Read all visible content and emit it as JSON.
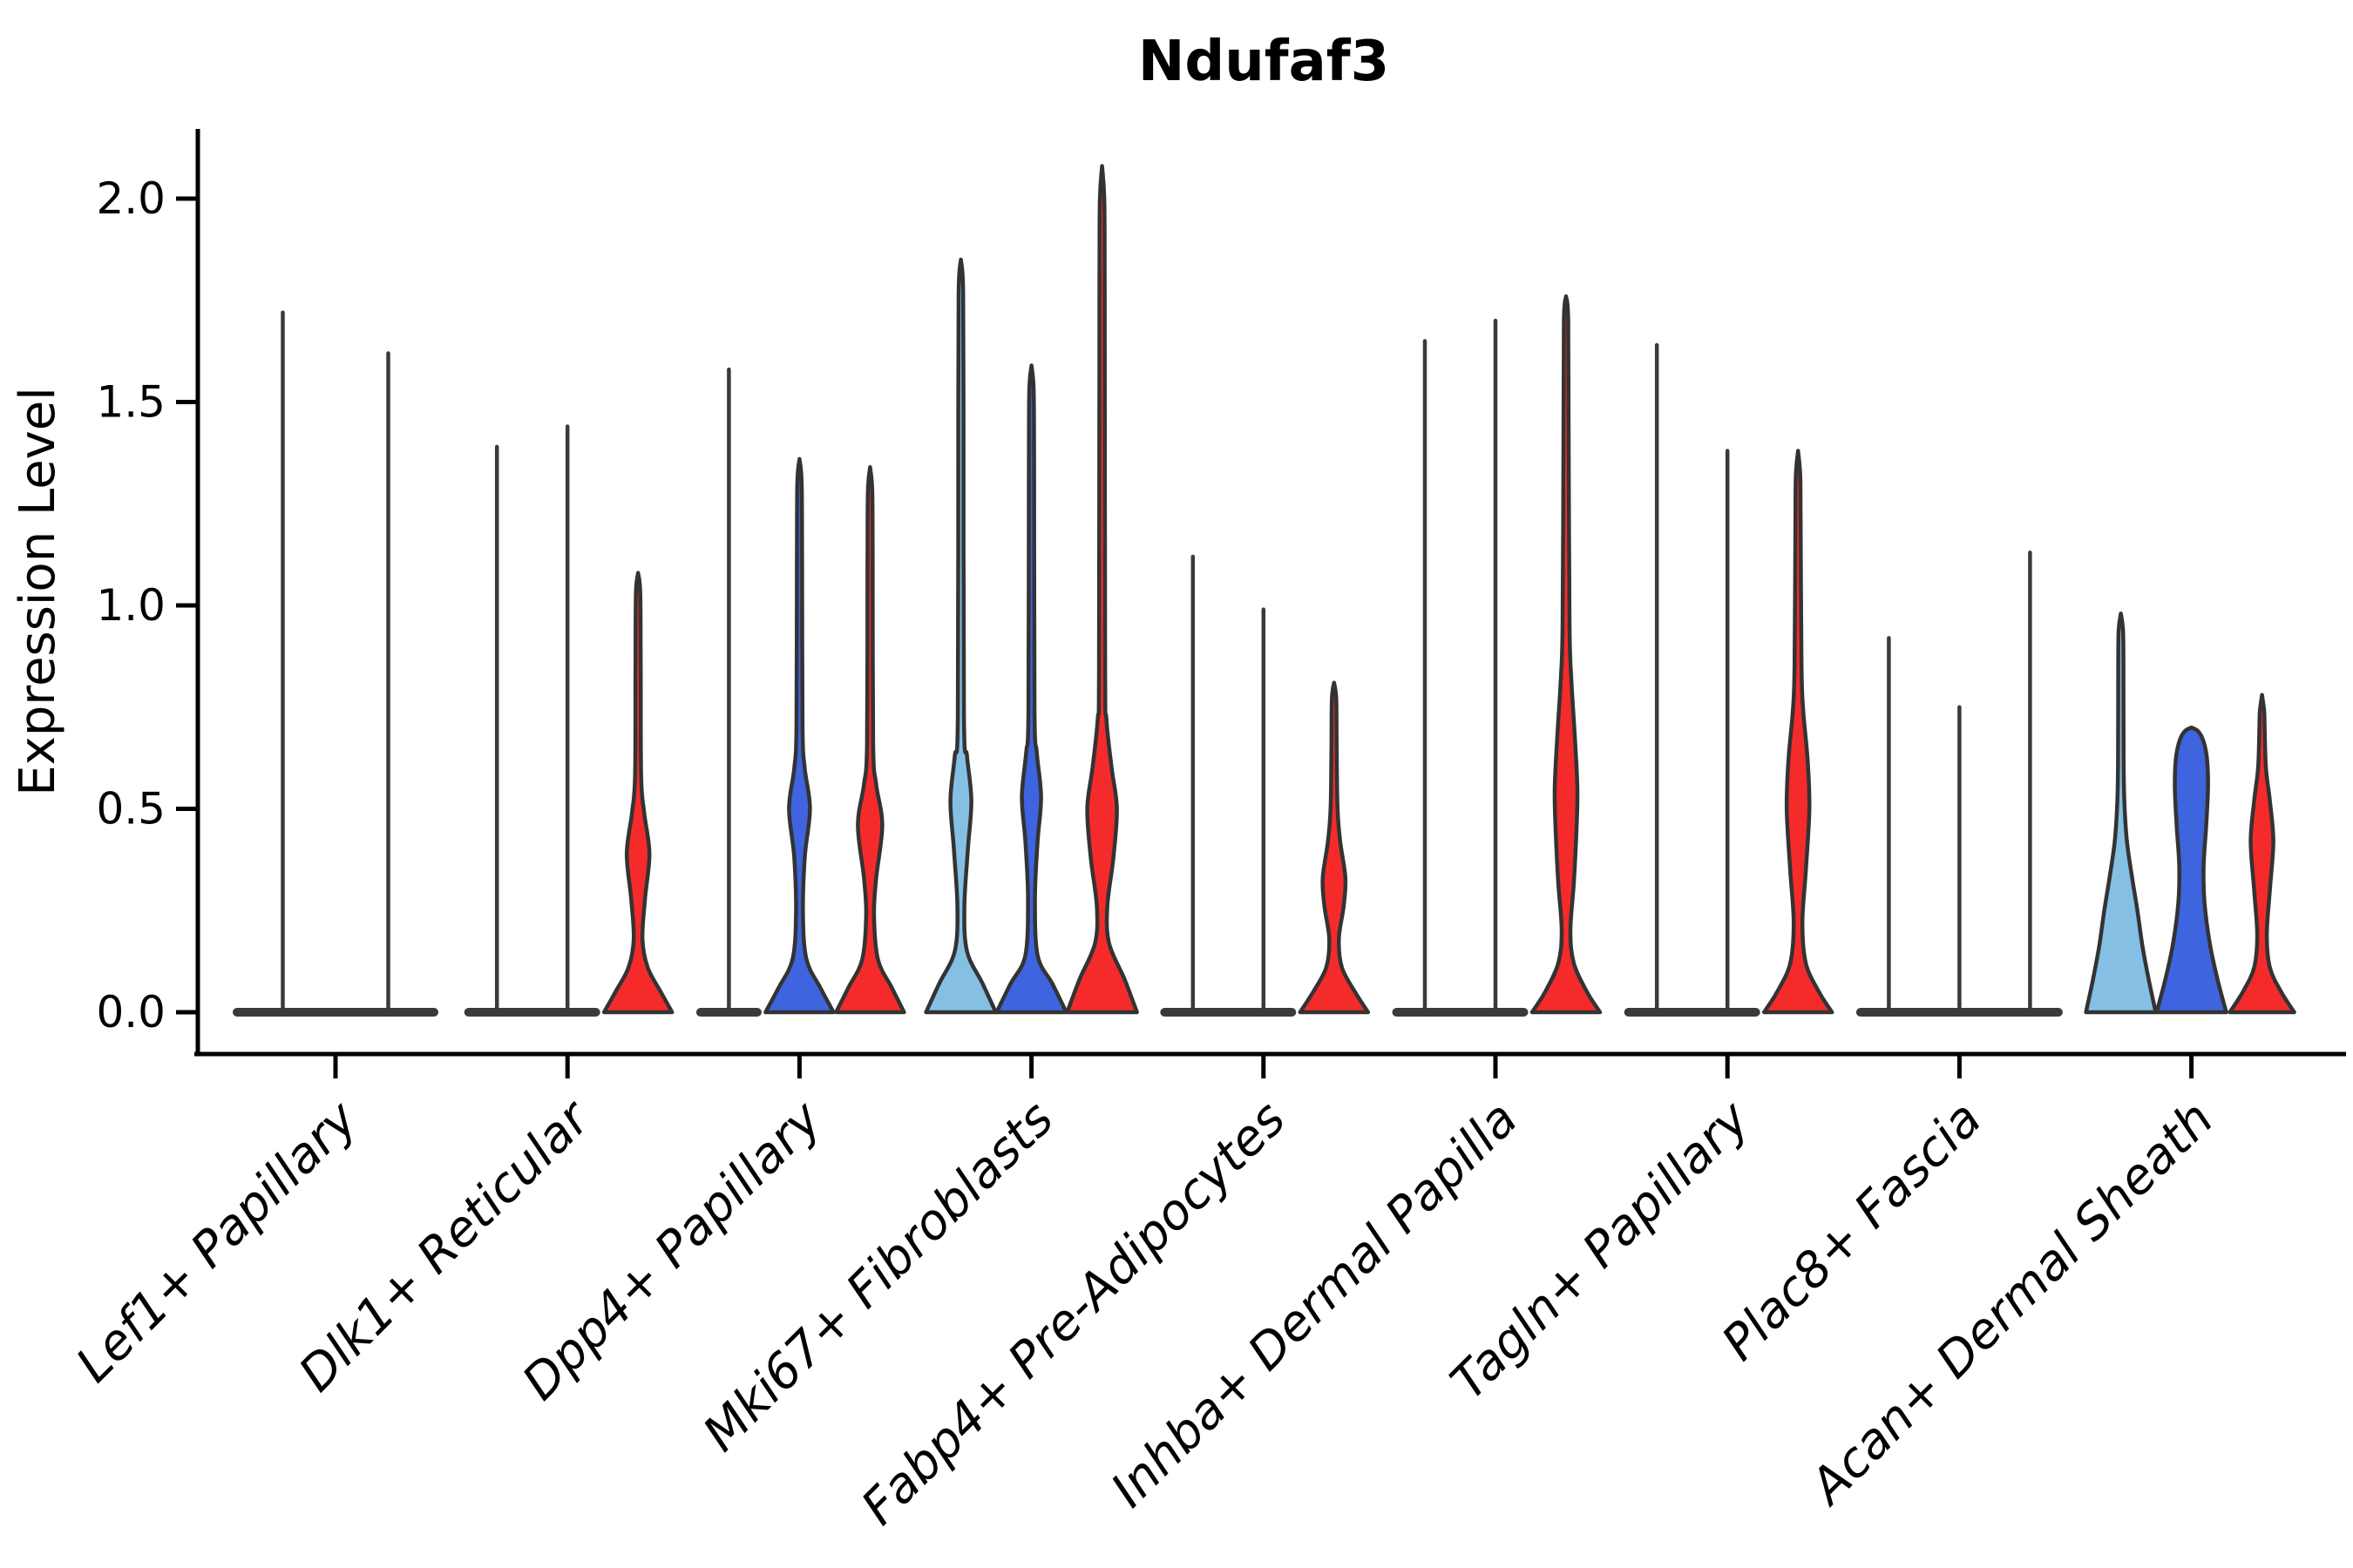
{
  "chart_data": {
    "type": "violin",
    "title": "Ndufaf3",
    "xlabel": "",
    "ylabel": "Expression Level",
    "ytick_labels": [
      "0.0",
      "0.5",
      "1.0",
      "1.5",
      "2.0"
    ],
    "ytick_values": [
      0.0,
      0.5,
      1.0,
      1.5,
      2.0
    ],
    "ylim": [
      0,
      2.2
    ],
    "grid": false,
    "legend": "none",
    "categories": [
      "Lef1+ Papillary",
      "Dlk1+ Reticular",
      "Dpp4+ Papillary",
      "Mki67+ Fibroblasts",
      "Fabp4+ Pre-Adipocytes",
      "Inhba+ Dermal Papilla",
      "Tagln+ Papillary",
      "Plac8+ Fascia",
      "Acan+ Dermal Sheath"
    ],
    "split_colors": {
      "lightblue": "#85BFE4",
      "blue": "#3F64DF",
      "red": "#F52B2B"
    },
    "outline_color": "#333333",
    "spike_color": "#3A3A3A",
    "axis_color": "#000000",
    "groups": [
      {
        "category": "Lef1+ Papillary",
        "violins": [
          {
            "split": "lightblue",
            "type": "spike",
            "max": 1.72
          },
          {
            "split": "blue",
            "type": "spike",
            "max": 1.62
          }
        ]
      },
      {
        "category": "Dlk1+ Reticular",
        "violins": [
          {
            "split": "lightblue",
            "type": "spike",
            "max": 1.39
          },
          {
            "split": "blue",
            "type": "spike",
            "max": 1.44
          },
          {
            "split": "red",
            "type": "violin",
            "max": 1.08,
            "profile": [
              [
                0,
                39
              ],
              [
                0.05,
                26
              ],
              [
                0.11,
                11
              ],
              [
                0.18,
                5
              ],
              [
                0.28,
                8
              ],
              [
                0.39,
                13
              ],
              [
                0.49,
                7
              ],
              [
                0.58,
                3.5
              ],
              [
                0.85,
                3
              ],
              [
                1.03,
                2.5
              ]
            ]
          }
        ]
      },
      {
        "category": "Dpp4+ Papillary",
        "violins": [
          {
            "split": "lightblue",
            "type": "spike",
            "max": 1.58
          },
          {
            "split": "blue",
            "type": "violin",
            "max": 1.36,
            "profile": [
              [
                0,
                39
              ],
              [
                0.06,
                24
              ],
              [
                0.13,
                8
              ],
              [
                0.24,
                4
              ],
              [
                0.38,
                6
              ],
              [
                0.5,
                12
              ],
              [
                0.6,
                6
              ],
              [
                0.7,
                3.5
              ],
              [
                1.1,
                3
              ],
              [
                1.3,
                2.5
              ]
            ]
          },
          {
            "split": "red",
            "type": "violin",
            "max": 1.34,
            "profile": [
              [
                0,
                39
              ],
              [
                0.06,
                25
              ],
              [
                0.13,
                9
              ],
              [
                0.24,
                4.5
              ],
              [
                0.33,
                7
              ],
              [
                0.46,
                14
              ],
              [
                0.56,
                7
              ],
              [
                0.66,
                3.5
              ],
              [
                1.1,
                3
              ],
              [
                1.28,
                2.5
              ]
            ]
          }
        ]
      },
      {
        "category": "Mki67+ Fibroblasts",
        "violins": [
          {
            "split": "lightblue",
            "type": "violin",
            "max": 1.85,
            "profile": [
              [
                0,
                40
              ],
              [
                0.07,
                25
              ],
              [
                0.15,
                7
              ],
              [
                0.26,
                4
              ],
              [
                0.4,
                8
              ],
              [
                0.52,
                12
              ],
              [
                0.63,
                7
              ],
              [
                0.73,
                3.5
              ],
              [
                1.5,
                3
              ],
              [
                1.78,
                2.5
              ]
            ]
          },
          {
            "split": "blue",
            "type": "violin",
            "max": 1.59,
            "profile": [
              [
                0,
                40
              ],
              [
                0.07,
                24
              ],
              [
                0.14,
                7
              ],
              [
                0.28,
                4
              ],
              [
                0.42,
                7
              ],
              [
                0.53,
                11
              ],
              [
                0.64,
                6
              ],
              [
                0.74,
                3.5
              ],
              [
                1.35,
                3
              ],
              [
                1.53,
                2.5
              ]
            ]
          },
          {
            "split": "red",
            "type": "violin",
            "max": 2.08,
            "profile": [
              [
                0,
                40
              ],
              [
                0.08,
                26
              ],
              [
                0.17,
                8
              ],
              [
                0.26,
                6
              ],
              [
                0.38,
                13
              ],
              [
                0.5,
                17
              ],
              [
                0.6,
                11
              ],
              [
                0.72,
                5
              ],
              [
                0.85,
                3.5
              ],
              [
                1.8,
                3
              ],
              [
                2.0,
                2.5
              ]
            ]
          }
        ]
      },
      {
        "category": "Fabp4+ Pre-Adipocytes",
        "violins": [
          {
            "split": "lightblue",
            "type": "spike",
            "max": 1.12
          },
          {
            "split": "blue",
            "type": "spike",
            "max": 0.99
          },
          {
            "split": "red",
            "type": "violin",
            "max": 0.81,
            "profile": [
              [
                0,
                39
              ],
              [
                0.05,
                24
              ],
              [
                0.11,
                9
              ],
              [
                0.18,
                5.5
              ],
              [
                0.26,
                11
              ],
              [
                0.33,
                13
              ],
              [
                0.42,
                7
              ],
              [
                0.5,
                4
              ],
              [
                0.65,
                3
              ],
              [
                0.77,
                2.5
              ]
            ]
          }
        ]
      },
      {
        "category": "Inhba+ Dermal Papilla",
        "violins": [
          {
            "split": "lightblue",
            "type": "spike",
            "max": 1.65
          },
          {
            "split": "blue",
            "type": "spike",
            "max": 1.7
          },
          {
            "split": "red",
            "type": "violin",
            "max": 1.76,
            "profile": [
              [
                0,
                39
              ],
              [
                0.05,
                24
              ],
              [
                0.12,
                9
              ],
              [
                0.2,
                5
              ],
              [
                0.32,
                9
              ],
              [
                0.45,
                12
              ],
              [
                0.55,
                13
              ],
              [
                0.68,
                10
              ],
              [
                0.82,
                6
              ],
              [
                0.95,
                4
              ],
              [
                1.4,
                3
              ],
              [
                1.7,
                2.5
              ]
            ]
          }
        ]
      },
      {
        "category": "Tagln+ Papillary",
        "violins": [
          {
            "split": "lightblue",
            "type": "spike",
            "max": 1.64
          },
          {
            "split": "blue",
            "type": "spike",
            "max": 1.38
          },
          {
            "split": "red",
            "type": "violin",
            "max": 1.38,
            "profile": [
              [
                0,
                39
              ],
              [
                0.05,
                24
              ],
              [
                0.12,
                9
              ],
              [
                0.22,
                5
              ],
              [
                0.35,
                9
              ],
              [
                0.5,
                13
              ],
              [
                0.62,
                11
              ],
              [
                0.74,
                6
              ],
              [
                0.85,
                4
              ],
              [
                1.2,
                3
              ],
              [
                1.32,
                2.5
              ]
            ]
          }
        ]
      },
      {
        "category": "Plac8+ Fascia",
        "violins": [
          {
            "split": "lightblue",
            "type": "spike",
            "max": 0.92
          },
          {
            "split": "blue",
            "type": "spike",
            "max": 0.75
          },
          {
            "split": "red",
            "type": "spike",
            "max": 1.13
          }
        ]
      },
      {
        "category": "Acan+ Dermal Sheath",
        "violins": [
          {
            "split": "lightblue",
            "type": "violin",
            "max": 0.98,
            "profile": [
              [
                0,
                40
              ],
              [
                0.08,
                32
              ],
              [
                0.16,
                25
              ],
              [
                0.25,
                19
              ],
              [
                0.33,
                13
              ],
              [
                0.42,
                7
              ],
              [
                0.52,
                4
              ],
              [
                0.62,
                3.2
              ],
              [
                0.85,
                3
              ],
              [
                0.94,
                2.5
              ]
            ]
          },
          {
            "split": "blue",
            "type": "violin",
            "max": 0.7,
            "profile": [
              [
                0,
                40
              ],
              [
                0.08,
                30
              ],
              [
                0.17,
                21
              ],
              [
                0.27,
                15
              ],
              [
                0.36,
                14
              ],
              [
                0.46,
                17
              ],
              [
                0.55,
                19
              ],
              [
                0.62,
                18
              ],
              [
                0.665,
                14
              ],
              [
                0.69,
                8
              ]
            ]
          },
          {
            "split": "red",
            "type": "violin",
            "max": 0.78,
            "profile": [
              [
                0,
                37
              ],
              [
                0.05,
                22
              ],
              [
                0.11,
                9
              ],
              [
                0.19,
                5.5
              ],
              [
                0.3,
                9
              ],
              [
                0.42,
                13
              ],
              [
                0.52,
                9
              ],
              [
                0.6,
                4.5
              ],
              [
                0.7,
                3
              ],
              [
                0.74,
                2.5
              ]
            ]
          }
        ]
      }
    ]
  }
}
